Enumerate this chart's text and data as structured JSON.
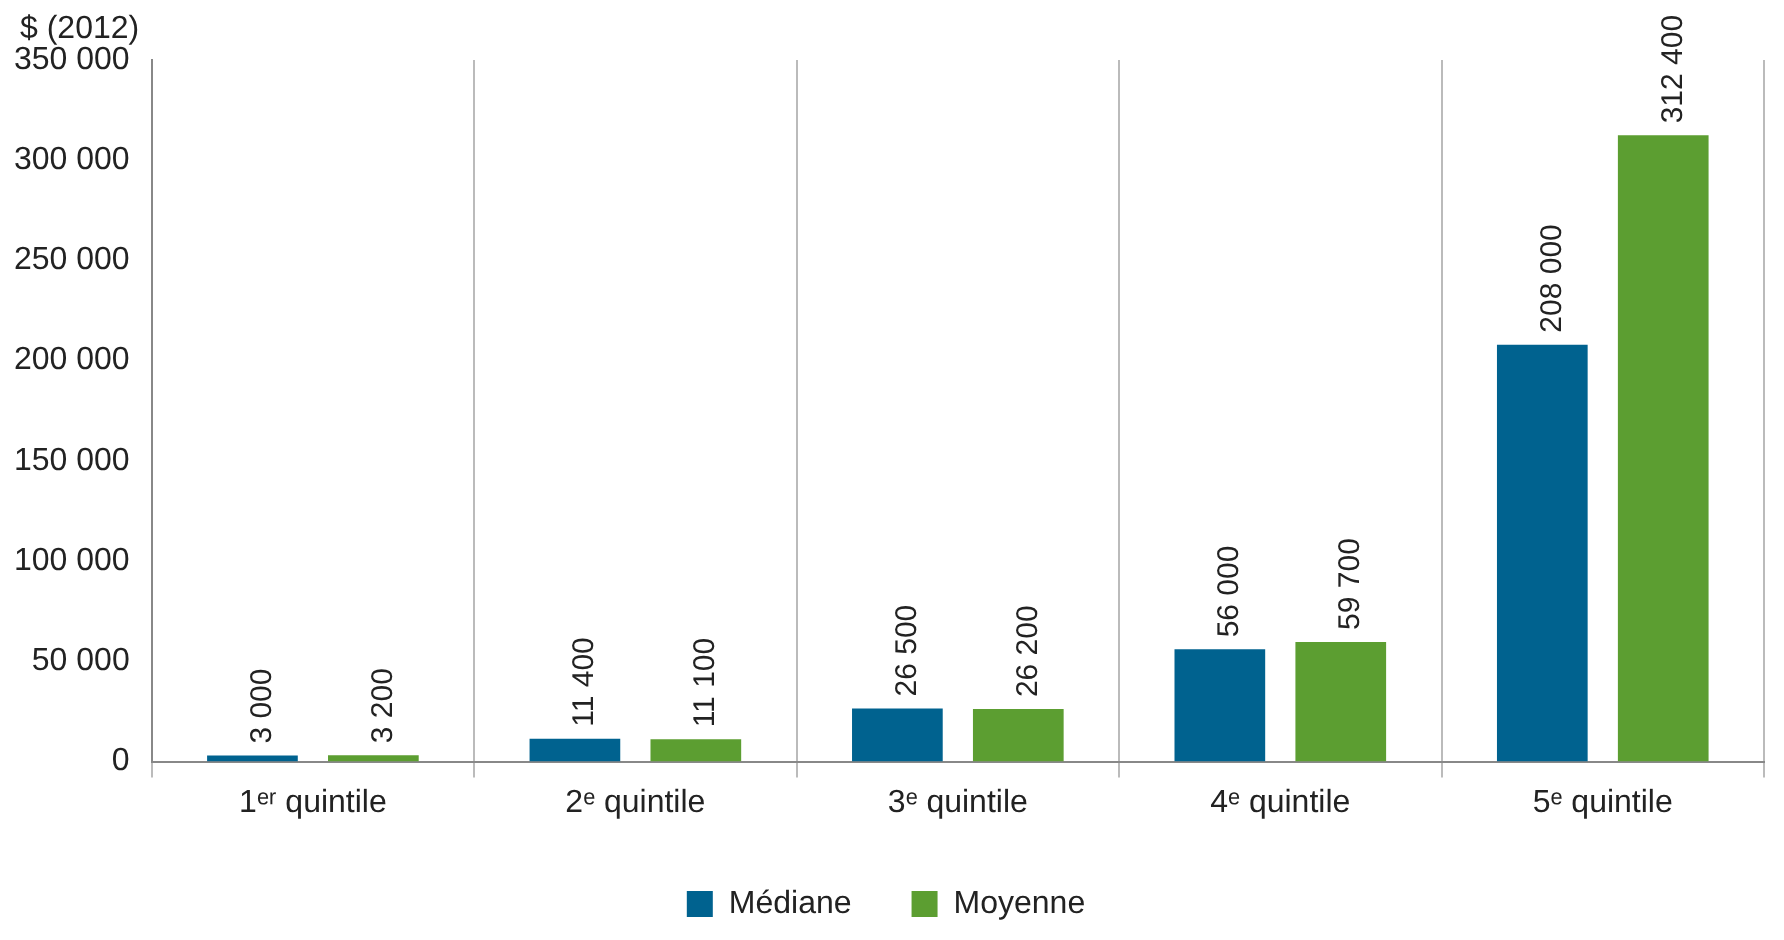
{
  "chart_data": {
    "type": "bar",
    "ylabel": "$ (2012)",
    "categories": [
      "1ᵉʳ quintile",
      "2ᵉ quintile",
      "3ᵉ quintile",
      "4ᵉ quintile",
      "5ᵉ quintile"
    ],
    "series": [
      {
        "name": "Médiane",
        "color": "#00628f",
        "values": [
          3000,
          11400,
          26500,
          56000,
          208000
        ],
        "value_labels": [
          "3 000",
          "11 400",
          "26 500",
          "56 000",
          "208 000"
        ]
      },
      {
        "name": "Moyenne",
        "color": "#5c9e31",
        "values": [
          3200,
          11100,
          26200,
          59700,
          312400
        ],
        "value_labels": [
          "3 200",
          "11 100",
          "26 200",
          "59 700",
          "312 400"
        ]
      }
    ],
    "ylim": [
      0,
      350000
    ],
    "yticks": [
      {
        "value": 0,
        "label": "0"
      },
      {
        "value": 50000,
        "label": "50 000"
      },
      {
        "value": 100000,
        "label": "100 000"
      },
      {
        "value": 150000,
        "label": "150 000"
      },
      {
        "value": 200000,
        "label": "200 000"
      },
      {
        "value": 250000,
        "label": "250 000"
      },
      {
        "value": 300000,
        "label": "300 000"
      },
      {
        "value": 350000,
        "label": "350 000"
      }
    ],
    "grid": "x",
    "legend": "bottom"
  }
}
